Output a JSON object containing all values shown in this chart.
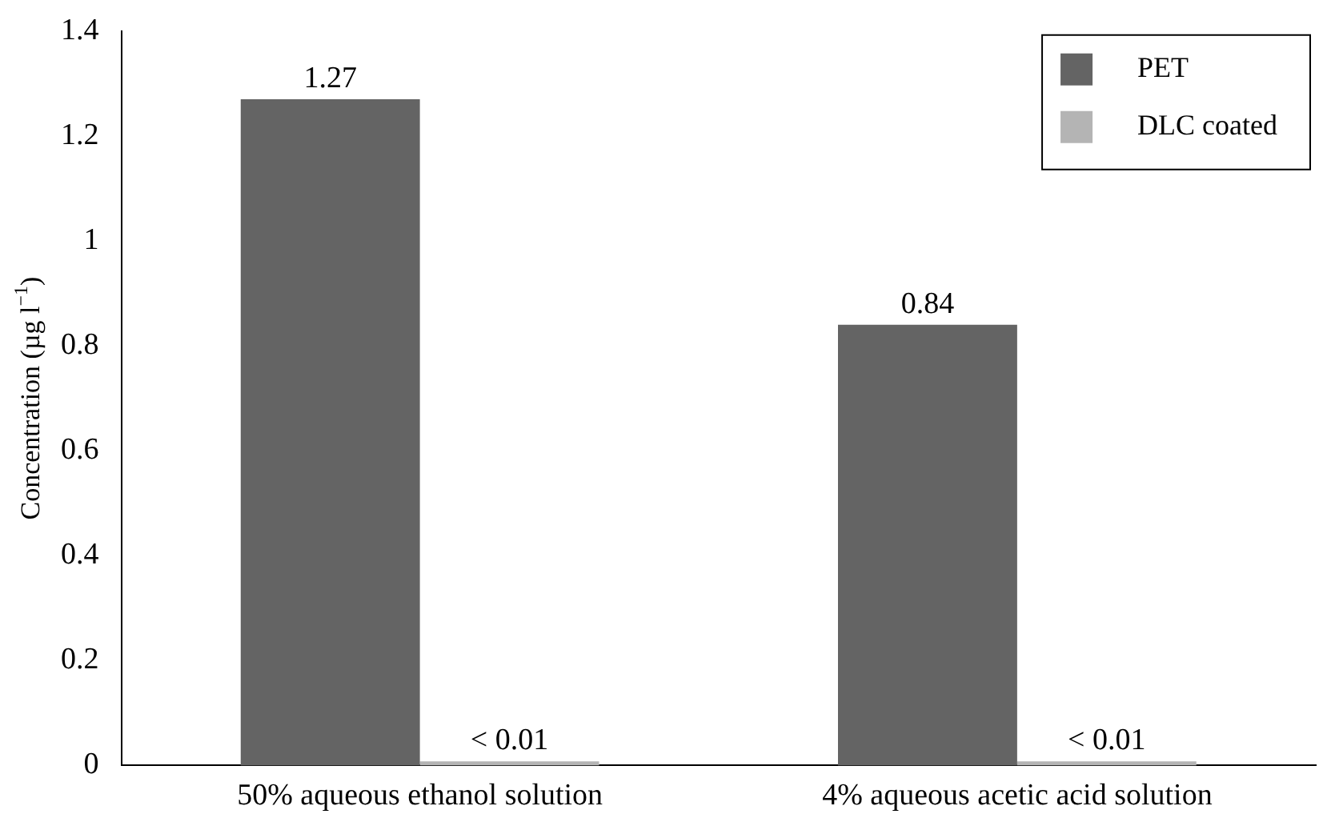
{
  "chart_data": {
    "type": "bar",
    "ylabel": "Concentration (µg l$^{−1}$)",
    "categories": [
      "50% aqueous ethanol solution",
      "4% aqueous acetic acid solution"
    ],
    "series": [
      {
        "name": "PET",
        "color": "#646464",
        "values": [
          1.27,
          0.84
        ],
        "value_labels": [
          "1.27",
          "0.84"
        ]
      },
      {
        "name": "DLC coated",
        "color": "#b4b4b4",
        "values": [
          0.008,
          0.008
        ],
        "value_labels": [
          "< 0.01",
          "< 0.01"
        ]
      }
    ],
    "ylim": [
      0,
      1.4
    ],
    "yticks": [
      0,
      0.2,
      0.4,
      0.6,
      0.8,
      1,
      1.2,
      1.4
    ],
    "grid": false,
    "legend": "top right"
  }
}
